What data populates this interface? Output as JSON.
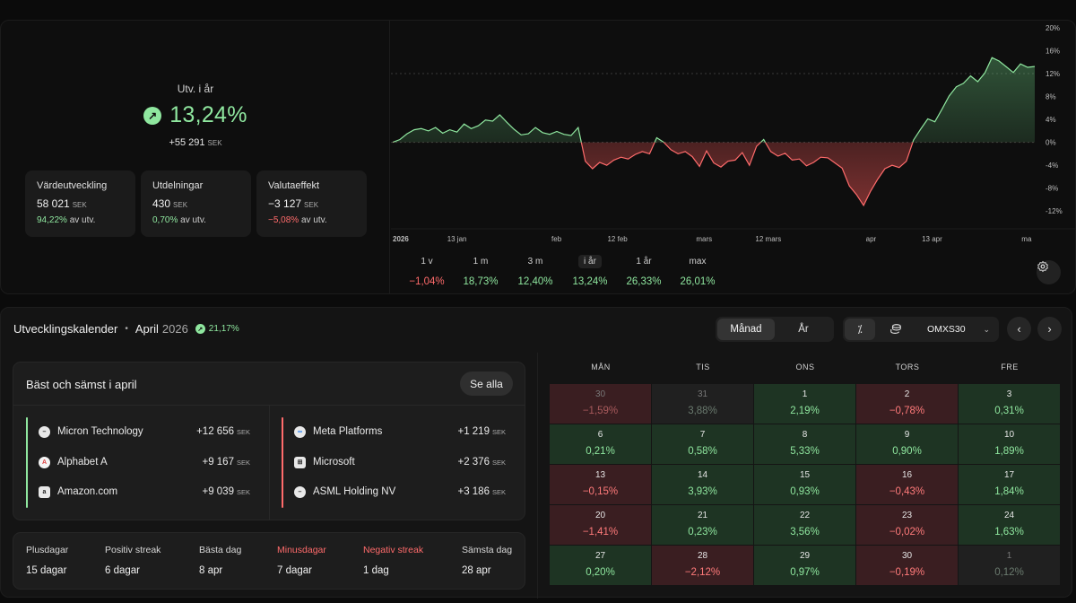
{
  "summary": {
    "label": "Utv. i år",
    "value": "13,24%",
    "abs_value": "+55 291",
    "currency": "SEK",
    "cards": [
      {
        "title": "Värdeutveckling",
        "value": "58 021",
        "currency": "SEK",
        "pct": "94,22%",
        "pct_suffix": "av utv.",
        "trend": "positive"
      },
      {
        "title": "Utdelningar",
        "value": "430",
        "currency": "SEK",
        "pct": "0,70%",
        "pct_suffix": "av utv.",
        "trend": "positive"
      },
      {
        "title": "Valutaeffekt",
        "value": "−3 127",
        "currency": "SEK",
        "pct": "−5,08%",
        "pct_suffix": "av utv.",
        "trend": "negative"
      }
    ]
  },
  "chart_data": {
    "type": "area",
    "x_labels": [
      "2026",
      "13 jan",
      "feb",
      "12 feb",
      "mars",
      "12 mars",
      "apr",
      "13 apr",
      "ma"
    ],
    "y_ticks": [
      "20%",
      "16%",
      "12%",
      "8%",
      "4%",
      "0%",
      "-4%",
      "-8%",
      "-12%"
    ],
    "ylim": [
      -14,
      20
    ],
    "series": [
      {
        "values": [
          0.0,
          0.5,
          1.5,
          2.2,
          2.4,
          2.0,
          2.6,
          1.6,
          2.2,
          1.8,
          3.2,
          2.4,
          2.9,
          3.9,
          3.7,
          4.8,
          3.5,
          2.3,
          1.3,
          1.5,
          2.6,
          1.7,
          1.4,
          1.9,
          1.4,
          1.2,
          2.6,
          -3.3,
          -4.6,
          -3.5,
          -4.0,
          -3.1,
          -2.6,
          -2.9,
          -2.1,
          -1.6,
          -2.0,
          0.8,
          0.0,
          -1.3,
          -2.0,
          -1.6,
          -2.5,
          -4.2,
          -1.5,
          -3.6,
          -4.3,
          -3.3,
          -3.1,
          -1.8,
          -4.0,
          -0.7,
          0.5,
          -1.6,
          -2.4,
          -1.9,
          -3.1,
          -2.9,
          -4.1,
          -3.5,
          -2.6,
          -2.7,
          -3.6,
          -4.5,
          -7.6,
          -9.1,
          -11.0,
          -8.5,
          -6.4,
          -4.6,
          -4.0,
          -4.4,
          -3.3,
          0.4,
          2.3,
          4.1,
          3.6,
          5.8,
          8.1,
          9.7,
          10.3,
          11.6,
          10.6,
          12.1,
          14.8,
          14.2,
          13.2,
          12.2,
          13.7,
          13.1,
          13.24
        ]
      }
    ],
    "grid": "dashed at 12% and 0%"
  },
  "periods": [
    {
      "label": "1 v",
      "value": "−1,04%",
      "trend": "negative",
      "active": false
    },
    {
      "label": "1 m",
      "value": "18,73%",
      "trend": "positive",
      "active": false
    },
    {
      "label": "3 m",
      "value": "12,40%",
      "trend": "positive",
      "active": false
    },
    {
      "label": "i år",
      "value": "13,24%",
      "trend": "positive",
      "active": true
    },
    {
      "label": "1 år",
      "value": "26,33%",
      "trend": "positive",
      "active": false
    },
    {
      "label": "max",
      "value": "26,01%",
      "trend": "positive",
      "active": false
    }
  ],
  "calendar": {
    "title": "Utvecklingskalender",
    "month": "April",
    "year": "2026",
    "change": "21,17%",
    "view_toggle": [
      "Månad",
      "År"
    ],
    "index": "OMXS30",
    "best_worst": {
      "title": "Bäst och sämst i april",
      "see_all": "Se alla",
      "best": [
        {
          "name": "Micron Technology",
          "amount": "+12 656",
          "currency": "SEK",
          "logo": "micron-logo"
        },
        {
          "name": "Alphabet A",
          "amount": "+9 167",
          "currency": "SEK",
          "logo": "alphabet-logo"
        },
        {
          "name": "Amazon.com",
          "amount": "+9 039",
          "currency": "SEK",
          "logo": "amazon-logo"
        }
      ],
      "worst": [
        {
          "name": "Meta Platforms",
          "amount": "+1 219",
          "currency": "SEK",
          "logo": "meta-logo"
        },
        {
          "name": "Microsoft",
          "amount": "+2 376",
          "currency": "SEK",
          "logo": "microsoft-logo"
        },
        {
          "name": "ASML Holding NV",
          "amount": "+3 186",
          "currency": "SEK",
          "logo": "asml-logo"
        }
      ]
    },
    "stats": [
      {
        "label": "Plusdagar",
        "value": "15 dagar",
        "trend": "positive"
      },
      {
        "label": "Positiv streak",
        "value": "6 dagar",
        "trend": "positive"
      },
      {
        "label": "Bästa dag",
        "value": "8 apr",
        "trend": "neutral"
      },
      {
        "label": "Minusdagar",
        "value": "7 dagar",
        "trend": "negative"
      },
      {
        "label": "Negativ streak",
        "value": "1 dag",
        "trend": "negative"
      },
      {
        "label": "Sämsta dag",
        "value": "28 apr",
        "trend": "neutral"
      }
    ],
    "weekdays": [
      "MÅN",
      "TIS",
      "ONS",
      "TORS",
      "FRE"
    ],
    "days": [
      {
        "day": "30",
        "pct": "−1,59%",
        "trend": "negative",
        "outside": true
      },
      {
        "day": "31",
        "pct": "3,88%",
        "trend": "neutral",
        "outside": true
      },
      {
        "day": "1",
        "pct": "2,19%",
        "trend": "positive",
        "outside": false
      },
      {
        "day": "2",
        "pct": "−0,78%",
        "trend": "negative",
        "outside": false
      },
      {
        "day": "3",
        "pct": "0,31%",
        "trend": "positive",
        "outside": false
      },
      {
        "day": "6",
        "pct": "0,21%",
        "trend": "positive",
        "outside": false
      },
      {
        "day": "7",
        "pct": "0,58%",
        "trend": "positive",
        "outside": false
      },
      {
        "day": "8",
        "pct": "5,33%",
        "trend": "positive",
        "outside": false
      },
      {
        "day": "9",
        "pct": "0,90%",
        "trend": "positive",
        "outside": false
      },
      {
        "day": "10",
        "pct": "1,89%",
        "trend": "positive",
        "outside": false
      },
      {
        "day": "13",
        "pct": "−0,15%",
        "trend": "negative",
        "outside": false
      },
      {
        "day": "14",
        "pct": "3,93%",
        "trend": "positive",
        "outside": false
      },
      {
        "day": "15",
        "pct": "0,93%",
        "trend": "positive",
        "outside": false
      },
      {
        "day": "16",
        "pct": "−0,43%",
        "trend": "negative",
        "outside": false
      },
      {
        "day": "17",
        "pct": "1,84%",
        "trend": "positive",
        "outside": false
      },
      {
        "day": "20",
        "pct": "−1,41%",
        "trend": "negative",
        "outside": false
      },
      {
        "day": "21",
        "pct": "0,23%",
        "trend": "positive",
        "outside": false
      },
      {
        "day": "22",
        "pct": "3,56%",
        "trend": "positive",
        "outside": false
      },
      {
        "day": "23",
        "pct": "−0,02%",
        "trend": "negative",
        "outside": false
      },
      {
        "day": "24",
        "pct": "1,63%",
        "trend": "positive",
        "outside": false
      },
      {
        "day": "27",
        "pct": "0,20%",
        "trend": "positive",
        "outside": false
      },
      {
        "day": "28",
        "pct": "−2,12%",
        "trend": "negative",
        "outside": false
      },
      {
        "day": "29",
        "pct": "0,97%",
        "trend": "positive",
        "outside": false
      },
      {
        "day": "30",
        "pct": "−0,19%",
        "trend": "negative",
        "outside": false
      },
      {
        "day": "1",
        "pct": "0,12%",
        "trend": "neutral",
        "outside": true
      }
    ]
  },
  "colors": {
    "positive": "#8fe79f",
    "negative": "#ff6b6b",
    "panel": "#141414"
  },
  "icons": [
    "arrow-up-right-icon",
    "percent-icon",
    "coins-icon",
    "chevron-down-icon",
    "chevron-left-icon",
    "chevron-right-icon",
    "settings-icon"
  ]
}
